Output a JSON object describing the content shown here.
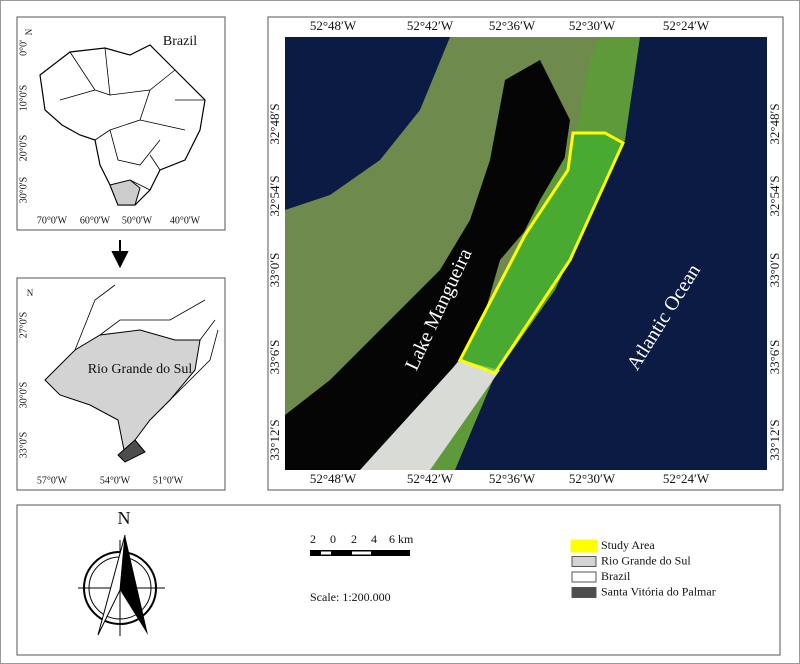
{
  "brazil_inset": {
    "title": "Brazil",
    "north": "N",
    "lat_labels": [
      "0°0'",
      "10°0'S",
      "20°0'S",
      "30°0'S"
    ],
    "lon_labels": [
      "70°0'W",
      "60°0'W",
      "50°0'W",
      "40°0'W"
    ]
  },
  "rs_inset": {
    "title": "Rio Grande do Sul",
    "north": "N",
    "lat_labels": [
      "27°0'S",
      "30°0'S",
      "33°0'S"
    ],
    "lon_labels": [
      "57°0'W",
      "54°0'W",
      "51°0'W"
    ]
  },
  "main_map": {
    "lon_labels": [
      "52°48′W",
      "52°42′W",
      "52°36′W",
      "52°30′W",
      "52°24′W"
    ],
    "lat_labels": [
      "32°48′S",
      "32°54′S",
      "33°0′S",
      "33°6′S",
      "33°12′S"
    ],
    "lake_label": "Lake Mangueira",
    "ocean_label": "Atlantic Ocean"
  },
  "compass": {
    "north": "N"
  },
  "scale": {
    "ticks": [
      "2",
      "0",
      "2",
      "4",
      "6"
    ],
    "unit": "km",
    "text": "Scale: 1:200.000"
  },
  "legend": [
    {
      "label": "Study Area",
      "color": "#ffff00"
    },
    {
      "label": "Rio Grande do Sul",
      "color": "#d3d3d3"
    },
    {
      "label": "Brazil",
      "color": "#ffffff"
    },
    {
      "label": "Santa Vitória do Palmar",
      "color": "#4d4d4d"
    }
  ]
}
